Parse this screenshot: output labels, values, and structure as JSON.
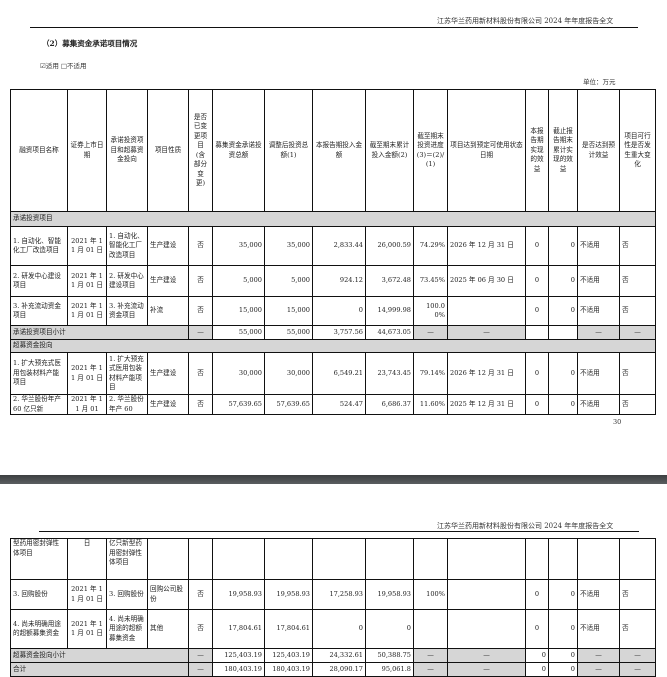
{
  "page1": {
    "header": "江苏华兰药用新材料股份有限公司 2024 年年度报告全文",
    "section_title": "（2）募集资金承诺项目情况",
    "applicable_checked": "☑适用",
    "not_applicable": "□不适用",
    "unit": "单位：万元",
    "page_number": "30"
  },
  "page2": {
    "header": "江苏华兰药用新材料股份有限公司 2024 年年度报告全文"
  },
  "table": {
    "columns": [
      "融资项目名称",
      "证券上市日期",
      "承诺投资项目和超募资金投向",
      "项目性质",
      "是否已变更项目(含部分变更)",
      "募集资金承诺投资总额",
      "调整后投资总额(1)",
      "本报告期投入金额",
      "截至期末累计投入金额(2)",
      "截至期末投资进度(3)＝(2)/(1)",
      "项目达到预定可使用状态日期",
      "本报告期实现的效益",
      "截止报告期末累计实现的效益",
      "是否达到预计效益",
      "项目可行性是否发生重大变化"
    ],
    "page1_rows": [
      {
        "type": "section",
        "label": "承诺投资项目"
      },
      {
        "type": "row",
        "cells": [
          "1. 自动化、智能化工厂改造项目",
          "2021 年 11 月 01 日",
          "1. 自动化、智能化工厂改造项目",
          "生产建设",
          "否",
          "35,000",
          "35,000",
          "2,833.44",
          "26,000.59",
          "74.29%",
          "2026 年 12 月 31 日",
          "0",
          "0",
          "不适用",
          "否"
        ]
      },
      {
        "type": "row",
        "cells": [
          "2. 研发中心建设项目",
          "2021 年 11 月 01 日",
          "2. 研发中心建设项目",
          "生产建设",
          "否",
          "5,000",
          "5,000",
          "924.12",
          "3,672.48",
          "73.45%",
          "2025 年 06 月 30 日",
          "0",
          "0",
          "不适用",
          "否"
        ]
      },
      {
        "type": "row",
        "cells": [
          "3. 补充流动资金项目",
          "2021 年 11 月 01 日",
          "3. 补充流动资金项目",
          "补流",
          "否",
          "15,000",
          "15,000",
          "0",
          "14,999.98",
          "100.00%",
          "",
          "0",
          "0",
          "不适用",
          "否"
        ]
      },
      {
        "type": "subtotal",
        "label": "承诺投资项目小计",
        "cells": [
          "—",
          "55,000",
          "55,000",
          "3,757.56",
          "44,673.05",
          "—",
          "—",
          "",
          "",
          "—",
          "—"
        ]
      },
      {
        "type": "section",
        "label": "超募资金投向"
      },
      {
        "type": "row",
        "cells": [
          "1. 扩大预充式医用包装材料产能项目",
          "2021 年 11 月 01 日",
          "1. 扩大预充式医用包装材料产能项目",
          "生产建设",
          "否",
          "30,000",
          "30,000",
          "6,549.21",
          "23,743.45",
          "79.14%",
          "2026 年 12 月 31 日",
          "0",
          "0",
          "不适用",
          "否"
        ]
      },
      {
        "type": "row",
        "cells": [
          "2. 华兰股份年产 60 亿只新",
          "2021 年 11 月 01",
          "2. 华兰股份年产 60",
          "生产建设",
          "否",
          "57,639.65",
          "57,639.65",
          "524.47",
          "6,686.37",
          "11.60%",
          "2025 年 12 月 31 日",
          "0",
          "0",
          "不适用",
          "否"
        ]
      }
    ],
    "page2_rows": [
      {
        "type": "row",
        "cells": [
          "型药用密封弹性体项目",
          "日",
          "亿只新型药用密封弹性体项目",
          "",
          "",
          "",
          "",
          "",
          "",
          "",
          "",
          "",
          "",
          "",
          ""
        ]
      },
      {
        "type": "row",
        "cells": [
          "3. 回购股份",
          "2021 年 11 月 01 日",
          "3. 回购股份",
          "回购公司股份",
          "否",
          "19,958.93",
          "19,958.93",
          "17,258.93",
          "19,958.93",
          "100%",
          "",
          "0",
          "0",
          "不适用",
          "否"
        ]
      },
      {
        "type": "row",
        "cells": [
          "4. 尚未明确用途的超额募集资金",
          "2021 年 11 月 01 日",
          "4. 尚未明确用途的超额募集资金",
          "其他",
          "否",
          "17,804.61",
          "17,804.61",
          "0",
          "0",
          "",
          "",
          "0",
          "0",
          "不适用",
          "否"
        ]
      },
      {
        "type": "subtotal",
        "label": "超募资金投向小计",
        "cells": [
          "—",
          "125,403.19",
          "125,403.19",
          "24,332.61",
          "50,388.75",
          "—",
          "—",
          "0",
          "0",
          "—",
          "—"
        ]
      },
      {
        "type": "subtotal",
        "label": "合计",
        "cells": [
          "—",
          "180,403.19",
          "180,403.19",
          "28,090.17",
          "95,061.8",
          "—",
          "—",
          "0",
          "0",
          "—",
          "—"
        ]
      }
    ]
  },
  "colors": {
    "shade": "#d6d6d6",
    "border": "#111111",
    "separator": "#4a4d4f"
  }
}
